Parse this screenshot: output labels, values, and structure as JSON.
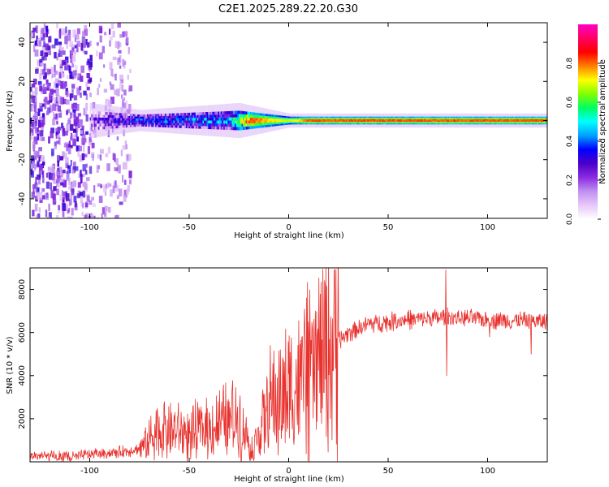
{
  "title": "C2E1.2025.289.22.20.G30",
  "chart_data": [
    {
      "type": "heatmap",
      "title": "C2E1.2025.289.22.20.G30",
      "xlabel": "Height of straight line (km)",
      "ylabel": "Frequency (Hz)",
      "xlim": [
        -130,
        130
      ],
      "ylim": [
        -50,
        50
      ],
      "xticks": [
        -100,
        -50,
        0,
        50,
        100
      ],
      "yticks": [
        -40,
        -20,
        0,
        20,
        40
      ],
      "colorbar": {
        "label": "Normalized spectral amplitude",
        "range": [
          0,
          1
        ],
        "ticks": [
          0.0,
          0.2,
          0.4,
          0.6,
          0.8
        ],
        "tick_labels": [
          "0.0",
          "0.2",
          "0.4",
          "0.6",
          "0.8"
        ],
        "colors": [
          "#ffffff",
          "#e8c8f8",
          "#c090f0",
          "#8a2be2",
          "#4b00c8",
          "#0000ff",
          "#00a0ff",
          "#00ffff",
          "#00ff60",
          "#80ff00",
          "#ffff00",
          "#ff8000",
          "#ff0000",
          "#ff0060",
          "#ff00c8"
        ]
      },
      "signal_band": {
        "center_frequency_hz": 0,
        "halfwidth_hz": [
          {
            "x": -100,
            "w": 5
          },
          {
            "x": -75,
            "w": 3
          },
          {
            "x": -50,
            "w": 4
          },
          {
            "x": -25,
            "w": 5
          },
          {
            "x": 0,
            "w": 2
          },
          {
            "x": 50,
            "w": 2
          },
          {
            "x": 130,
            "w": 2
          }
        ],
        "amplitude_profile": [
          {
            "x": -100,
            "a": 0.2
          },
          {
            "x": -80,
            "a": 0.35
          },
          {
            "x": -60,
            "a": 0.4
          },
          {
            "x": -30,
            "a": 0.45
          },
          {
            "x": -20,
            "a": 0.9
          },
          {
            "x": 0,
            "a": 0.75
          },
          {
            "x": 10,
            "a": 0.9
          },
          {
            "x": 130,
            "a": 0.9
          }
        ]
      },
      "noise_region_x": [
        -130,
        -80
      ]
    },
    {
      "type": "line",
      "xlabel": "Height of straight line (km)",
      "ylabel": "SNR (10 * v/v)",
      "xlim": [
        -130,
        130
      ],
      "ylim": [
        0,
        9000
      ],
      "xticks": [
        -100,
        -50,
        0,
        50,
        100
      ],
      "yticks": [
        2000,
        4000,
        6000,
        8000
      ],
      "color": "#e8322e",
      "series": [
        {
          "name": "SNR",
          "trend": [
            {
              "x": -130,
              "y": 300
            },
            {
              "x": -110,
              "y": 200
            },
            {
              "x": -100,
              "y": 350
            },
            {
              "x": -85,
              "y": 450
            },
            {
              "x": -75,
              "y": 600
            },
            {
              "x": -65,
              "y": 1500
            },
            {
              "x": -50,
              "y": 1300
            },
            {
              "x": -35,
              "y": 1700
            },
            {
              "x": -25,
              "y": 2100
            },
            {
              "x": -18,
              "y": 600
            },
            {
              "x": -10,
              "y": 2600
            },
            {
              "x": 0,
              "y": 3200
            },
            {
              "x": 10,
              "y": 4000
            },
            {
              "x": 20,
              "y": 5200
            },
            {
              "x": 30,
              "y": 6000
            },
            {
              "x": 40,
              "y": 6400
            },
            {
              "x": 60,
              "y": 6600
            },
            {
              "x": 80,
              "y": 6700
            },
            {
              "x": 100,
              "y": 6600
            },
            {
              "x": 130,
              "y": 6500
            }
          ],
          "spikes": [
            {
              "x": 8,
              "y": 7100
            },
            {
              "x": 79,
              "y": 8900
            },
            {
              "x": 79.5,
              "y": 4000
            },
            {
              "x": 101,
              "y": 5800
            },
            {
              "x": 122,
              "y": 5000
            }
          ]
        }
      ]
    }
  ]
}
